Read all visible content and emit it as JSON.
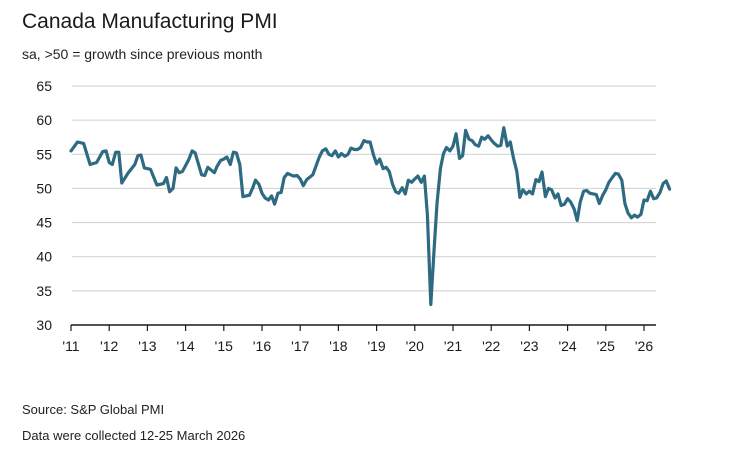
{
  "header": {
    "title": "Canada Manufacturing PMI",
    "subtitle": "sa, >50 = growth since previous month"
  },
  "footer": {
    "source": "Source: S&P Global PMI",
    "note": "Data were collected 12-25 March 2026"
  },
  "chart_data": {
    "type": "line",
    "title": "Canada Manufacturing PMI",
    "subtitle": "sa, >50 = growth since previous month",
    "xlabel": "",
    "ylabel": "",
    "ylim": [
      30,
      65
    ],
    "yticks": [
      30,
      35,
      40,
      45,
      50,
      55,
      60,
      65
    ],
    "xlim": [
      2011,
      2026.25
    ],
    "xticks": [
      {
        "x": 2011,
        "label": "'11"
      },
      {
        "x": 2012,
        "label": "'12"
      },
      {
        "x": 2013,
        "label": "'13"
      },
      {
        "x": 2014,
        "label": "'14"
      },
      {
        "x": 2015,
        "label": "'15"
      },
      {
        "x": 2016,
        "label": "'16"
      },
      {
        "x": 2017,
        "label": "'17"
      },
      {
        "x": 2018,
        "label": "'18"
      },
      {
        "x": 2019,
        "label": "'19"
      },
      {
        "x": 2020,
        "label": "'20"
      },
      {
        "x": 2021,
        "label": "'21"
      },
      {
        "x": 2022,
        "label": "'22"
      },
      {
        "x": 2023,
        "label": "'23"
      },
      {
        "x": 2024,
        "label": "'24"
      },
      {
        "x": 2025,
        "label": "'25"
      },
      {
        "x": 2026,
        "label": "'26"
      }
    ],
    "grid": "horizontal",
    "line_color": "#2e6b82",
    "series": [
      {
        "values": [
          [
            2011.0,
            55.5
          ],
          [
            2011.17,
            56.8
          ],
          [
            2011.33,
            56.6
          ],
          [
            2011.5,
            53.5
          ],
          [
            2011.67,
            53.8
          ],
          [
            2011.83,
            55.4
          ],
          [
            2011.92,
            55.5
          ],
          [
            2012.0,
            53.8
          ],
          [
            2012.08,
            53.5
          ],
          [
            2012.17,
            55.3
          ],
          [
            2012.25,
            55.3
          ],
          [
            2012.33,
            50.8
          ],
          [
            2012.5,
            52.3
          ],
          [
            2012.67,
            53.5
          ],
          [
            2012.75,
            54.8
          ],
          [
            2012.83,
            54.9
          ],
          [
            2012.92,
            53.0
          ],
          [
            2013.08,
            52.8
          ],
          [
            2013.25,
            50.5
          ],
          [
            2013.42,
            50.7
          ],
          [
            2013.5,
            51.6
          ],
          [
            2013.58,
            49.5
          ],
          [
            2013.67,
            50.0
          ],
          [
            2013.75,
            53.0
          ],
          [
            2013.83,
            52.3
          ],
          [
            2013.92,
            52.5
          ],
          [
            2014.08,
            54.2
          ],
          [
            2014.17,
            55.5
          ],
          [
            2014.25,
            55.2
          ],
          [
            2014.42,
            52.0
          ],
          [
            2014.5,
            51.9
          ],
          [
            2014.58,
            53.1
          ],
          [
            2014.75,
            52.3
          ],
          [
            2014.83,
            53.3
          ],
          [
            2014.92,
            54.1
          ],
          [
            2015.0,
            54.3
          ],
          [
            2015.08,
            54.6
          ],
          [
            2015.17,
            53.5
          ],
          [
            2015.25,
            55.3
          ],
          [
            2015.33,
            55.2
          ],
          [
            2015.42,
            53.5
          ],
          [
            2015.5,
            48.8
          ],
          [
            2015.67,
            49.0
          ],
          [
            2015.75,
            50.0
          ],
          [
            2015.83,
            51.2
          ],
          [
            2015.92,
            50.6
          ],
          [
            2016.0,
            49.3
          ],
          [
            2016.08,
            48.6
          ],
          [
            2016.17,
            48.3
          ],
          [
            2016.25,
            48.9
          ],
          [
            2016.33,
            47.7
          ],
          [
            2016.42,
            49.3
          ],
          [
            2016.5,
            49.4
          ],
          [
            2016.58,
            51.6
          ],
          [
            2016.67,
            52.2
          ],
          [
            2016.75,
            52.0
          ],
          [
            2016.83,
            51.8
          ],
          [
            2016.92,
            51.9
          ],
          [
            2017.0,
            51.4
          ],
          [
            2017.08,
            50.4
          ],
          [
            2017.17,
            51.3
          ],
          [
            2017.33,
            52.0
          ],
          [
            2017.5,
            54.6
          ],
          [
            2017.58,
            55.5
          ],
          [
            2017.67,
            55.8
          ],
          [
            2017.75,
            55.0
          ],
          [
            2017.83,
            54.8
          ],
          [
            2017.92,
            55.5
          ],
          [
            2018.0,
            54.6
          ],
          [
            2018.08,
            55.1
          ],
          [
            2018.17,
            54.7
          ],
          [
            2018.25,
            55.0
          ],
          [
            2018.33,
            55.9
          ],
          [
            2018.42,
            55.7
          ],
          [
            2018.5,
            55.7
          ],
          [
            2018.58,
            56.0
          ],
          [
            2018.67,
            57.0
          ],
          [
            2018.75,
            56.8
          ],
          [
            2018.83,
            56.8
          ],
          [
            2018.92,
            54.9
          ],
          [
            2019.0,
            53.6
          ],
          [
            2019.08,
            54.3
          ],
          [
            2019.17,
            52.9
          ],
          [
            2019.25,
            53.1
          ],
          [
            2019.33,
            52.5
          ],
          [
            2019.42,
            50.6
          ],
          [
            2019.5,
            49.5
          ],
          [
            2019.58,
            49.3
          ],
          [
            2019.67,
            50.1
          ],
          [
            2019.75,
            49.2
          ],
          [
            2019.83,
            51.2
          ],
          [
            2019.92,
            50.9
          ],
          [
            2020.0,
            51.4
          ],
          [
            2020.08,
            51.8
          ],
          [
            2020.17,
            50.9
          ],
          [
            2020.25,
            51.8
          ],
          [
            2020.33,
            46.1
          ],
          [
            2020.42,
            33.0
          ],
          [
            2020.5,
            40.6
          ],
          [
            2020.58,
            47.8
          ],
          [
            2020.67,
            52.9
          ],
          [
            2020.75,
            55.1
          ],
          [
            2020.83,
            56.0
          ],
          [
            2020.92,
            55.5
          ],
          [
            2021.0,
            56.2
          ],
          [
            2021.08,
            58.0
          ],
          [
            2021.17,
            54.4
          ],
          [
            2021.25,
            54.8
          ],
          [
            2021.33,
            58.5
          ],
          [
            2021.42,
            57.2
          ],
          [
            2021.5,
            57.0
          ],
          [
            2021.58,
            56.4
          ],
          [
            2021.67,
            56.2
          ],
          [
            2021.75,
            57.5
          ],
          [
            2021.83,
            57.2
          ],
          [
            2021.92,
            57.7
          ],
          [
            2022.0,
            57.1
          ],
          [
            2022.08,
            56.6
          ],
          [
            2022.17,
            56.2
          ],
          [
            2022.25,
            56.3
          ],
          [
            2022.33,
            58.9
          ],
          [
            2022.42,
            56.2
          ],
          [
            2022.5,
            56.8
          ],
          [
            2022.58,
            54.5
          ],
          [
            2022.67,
            52.5
          ],
          [
            2022.75,
            48.7
          ],
          [
            2022.83,
            49.8
          ],
          [
            2022.92,
            49.2
          ],
          [
            2023.0,
            49.6
          ],
          [
            2023.08,
            49.2
          ],
          [
            2023.17,
            51.3
          ],
          [
            2023.25,
            51.0
          ],
          [
            2023.33,
            52.4
          ],
          [
            2023.42,
            48.8
          ],
          [
            2023.5,
            50.0
          ],
          [
            2023.58,
            49.8
          ],
          [
            2023.67,
            48.6
          ],
          [
            2023.75,
            49.2
          ],
          [
            2023.83,
            47.5
          ],
          [
            2023.92,
            47.7
          ],
          [
            2024.0,
            48.5
          ],
          [
            2024.08,
            48.0
          ],
          [
            2024.17,
            47.0
          ],
          [
            2024.25,
            45.3
          ],
          [
            2024.33,
            48.0
          ],
          [
            2024.42,
            49.6
          ],
          [
            2024.5,
            49.7
          ],
          [
            2024.58,
            49.3
          ],
          [
            2024.67,
            49.2
          ],
          [
            2024.75,
            49.1
          ],
          [
            2024.83,
            47.8
          ],
          [
            2024.92,
            49.0
          ],
          [
            2025.0,
            49.8
          ],
          [
            2025.08,
            50.9
          ],
          [
            2025.17,
            51.6
          ],
          [
            2025.25,
            52.2
          ],
          [
            2025.33,
            52.1
          ],
          [
            2025.42,
            51.2
          ],
          [
            2025.5,
            47.8
          ],
          [
            2025.58,
            46.4
          ],
          [
            2025.67,
            45.7
          ],
          [
            2025.75,
            46.1
          ],
          [
            2025.83,
            45.8
          ],
          [
            2025.92,
            46.2
          ],
          [
            2026.0,
            48.3
          ],
          [
            2026.08,
            48.2
          ],
          [
            2026.17,
            49.6
          ],
          [
            2026.25,
            48.5
          ],
          [
            2026.33,
            48.6
          ],
          [
            2026.42,
            49.4
          ],
          [
            2026.5,
            50.7
          ],
          [
            2026.58,
            51.1
          ],
          [
            2026.67,
            49.9
          ]
        ]
      }
    ]
  }
}
